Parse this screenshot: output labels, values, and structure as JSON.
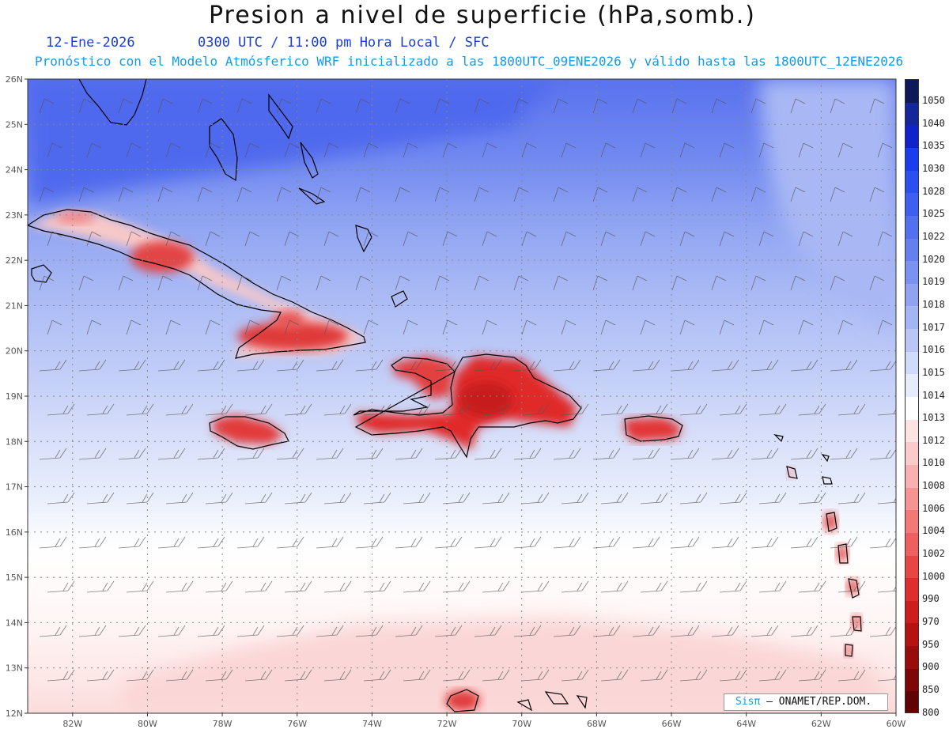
{
  "header": {
    "title": "Presion a nivel de superficie (hPa,somb.)",
    "date": "12-Ene-2026",
    "time": "0300 UTC / 11:00 pm Hora Local / SFC",
    "forecast": "Pronóstico con el Modelo Atmósferico WRF inicializado a las 1800UTC_09ENE2026 y válido hasta las  1800UTC_12ENE2026"
  },
  "axes": {
    "lat_labels": [
      "26N",
      "25N",
      "24N",
      "23N",
      "22N",
      "21N",
      "20N",
      "19N",
      "18N",
      "17N",
      "16N",
      "15N",
      "14N",
      "13N",
      "12N"
    ],
    "lon_labels": [
      "82W",
      "80W",
      "78W",
      "76W",
      "74W",
      "72W",
      "70W",
      "68W",
      "66W",
      "64W",
      "62W",
      "60W"
    ],
    "lat_range": [
      12,
      26
    ],
    "lon_range": [
      -83.2,
      -60
    ]
  },
  "colorbar": {
    "levels": [
      "1050",
      "1040",
      "1035",
      "1030",
      "1028",
      "1025",
      "1022",
      "1020",
      "1019",
      "1018",
      "1017",
      "1016",
      "1015",
      "1014",
      "1013",
      "1012",
      "1010",
      "1008",
      "1006",
      "1004",
      "1002",
      "1000",
      "990",
      "970",
      "950",
      "900",
      "850",
      "800"
    ],
    "colors": [
      "#0c1a5c",
      "#13279a",
      "#0f22cc",
      "#1b3df0",
      "#2c4ff2",
      "#3f5ff0",
      "#5270ef",
      "#6580ee",
      "#7a92f0",
      "#8fa3f1",
      "#a4b5f4",
      "#bac7f6",
      "#d0daf9",
      "#e6ecfb",
      "#ffffff",
      "#fde4e4",
      "#fbcaca",
      "#f9b0b0",
      "#f69494",
      "#f37979",
      "#ef5f5f",
      "#ea4545",
      "#e02d2d",
      "#cf1c1c",
      "#b61212",
      "#9a0b0b",
      "#7f0606",
      "#620303"
    ]
  },
  "credit": {
    "brand": "Sisπ",
    "org": "– ONAMET/REP.DOM."
  }
}
